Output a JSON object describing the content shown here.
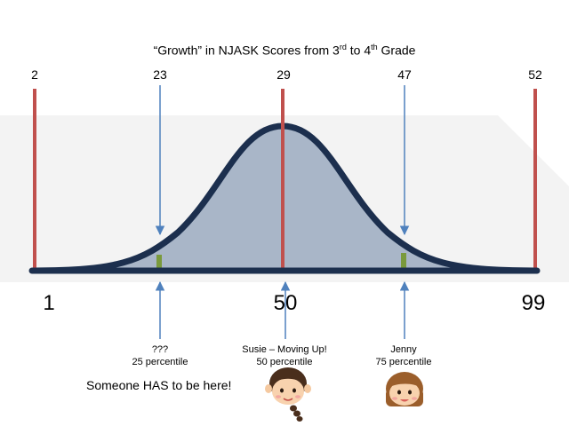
{
  "title": {
    "before": "“Growth” in NJASK Scores from 3",
    "sup1": "rd",
    "middle": " to 4",
    "sup2": "th",
    "after": " Grade"
  },
  "top_labels": [
    "2",
    "23",
    "29",
    "47",
    "52"
  ],
  "percentile_labels": [
    "1",
    "50",
    "99"
  ],
  "annotations": {
    "unknown": {
      "line1": "???",
      "line2": "25 percentile"
    },
    "susie": {
      "line1": "Susie – Moving Up!",
      "line2": "50 percentile"
    },
    "jenny": {
      "line1": "Jenny",
      "line2": "75 percentile"
    }
  },
  "note": "Someone HAS to be here!",
  "colors": {
    "curve_stroke": "#1c2f4e",
    "curve_fill": "#a9b6c8",
    "marker_red": "#c0504d",
    "arrow_blue": "#4f81bd",
    "marker_green": "#7a9a3c",
    "band_gray": "#f2f2f2"
  },
  "icons": [
    "girl-with-braid-icon",
    "girl-with-bangs-icon"
  ]
}
